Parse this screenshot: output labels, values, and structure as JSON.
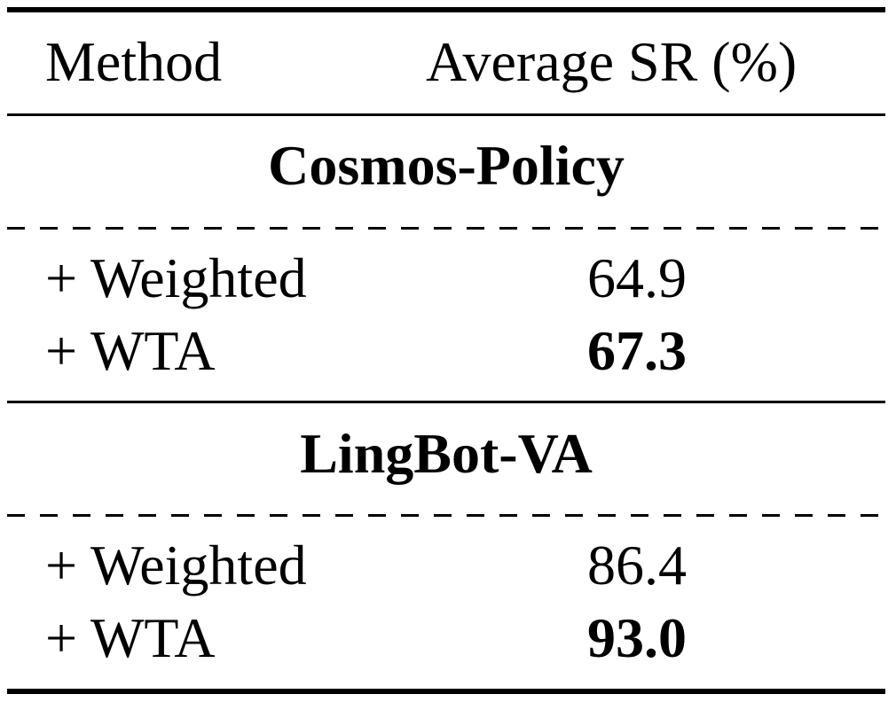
{
  "header": {
    "method": "Method",
    "average_sr": "Average SR (%)"
  },
  "groups": [
    {
      "title": "Cosmos-Policy",
      "rows": [
        {
          "method": "+ Weighted",
          "value": "64.9",
          "bold": false
        },
        {
          "method": "+ WTA",
          "value": "67.3",
          "bold": true
        }
      ]
    },
    {
      "title": "LingBot-VA",
      "rows": [
        {
          "method": "+ Weighted",
          "value": "86.4",
          "bold": false
        },
        {
          "method": "+ WTA",
          "value": "93.0",
          "bold": true
        }
      ]
    }
  ]
}
